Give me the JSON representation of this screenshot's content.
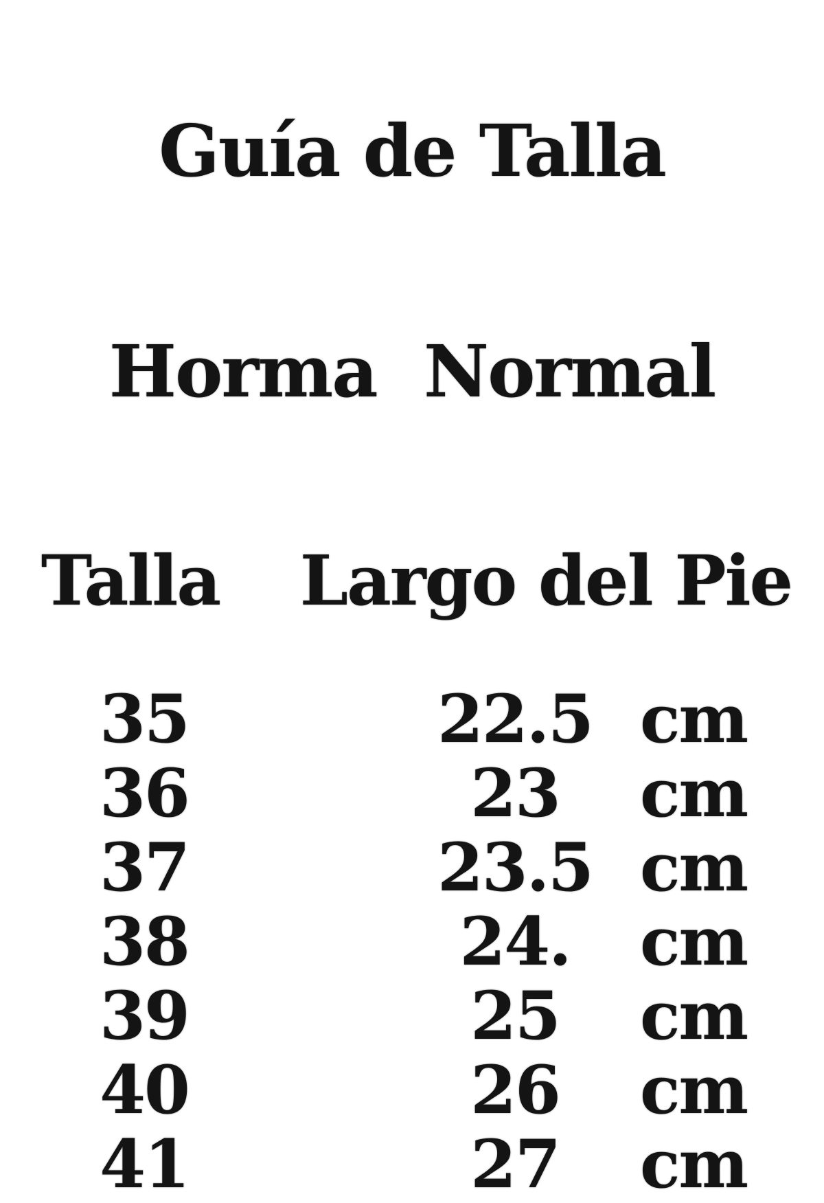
{
  "title": {
    "line1": "Guía de Talla",
    "line2": "Horma  Normal"
  },
  "table": {
    "headers": {
      "talla": "Talla",
      "largo": "Largo del Pie"
    },
    "rows": [
      {
        "talla": "35",
        "largo": "22.5",
        "unit": "cm"
      },
      {
        "talla": "36",
        "largo": "23",
        "unit": "cm"
      },
      {
        "talla": "37",
        "largo": "23.5",
        "unit": "cm"
      },
      {
        "talla": "38",
        "largo": "24.",
        "unit": "cm"
      },
      {
        "talla": "39",
        "largo": "25",
        "unit": "cm"
      },
      {
        "talla": "40",
        "largo": "26",
        "unit": "cm"
      },
      {
        "talla": "41",
        "largo": "27",
        "unit": "cm"
      }
    ]
  },
  "colors": {
    "text": "#141414",
    "background": "#ffffff"
  }
}
